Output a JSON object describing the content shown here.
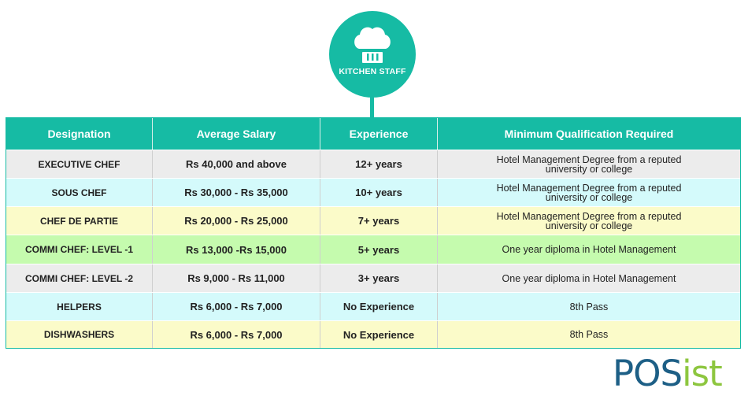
{
  "badge": {
    "icon": "chef-hat-icon",
    "label": "KITCHEN STAFF"
  },
  "table": {
    "columns": [
      "Designation",
      "Average Salary",
      "Experience",
      "Minimum Qualification Required"
    ],
    "rows": [
      {
        "designation": "EXECUTIVE CHEF",
        "salary": "Rs 40,000 and above",
        "experience": "12+ years",
        "qualification": "Hotel Management Degree from a reputed university or college"
      },
      {
        "designation": "SOUS CHEF",
        "salary": "Rs 30,000 - Rs 35,000",
        "experience": "10+ years",
        "qualification": "Hotel Management Degree from a reputed university or college"
      },
      {
        "designation": "CHEF DE PARTIE",
        "salary": "Rs 20,000 - Rs 25,000",
        "experience": "7+ years",
        "qualification": "Hotel Management Degree from a reputed university or college"
      },
      {
        "designation": "COMMI CHEF: LEVEL -1",
        "salary": "Rs 13,000 -Rs 15,000",
        "experience": "5+ years",
        "qualification": "One year diploma in Hotel Management"
      },
      {
        "designation": "COMMI CHEF: LEVEL -2",
        "salary": "Rs 9,000 - Rs 11,000",
        "experience": "3+ years",
        "qualification": "One year diploma in Hotel Management"
      },
      {
        "designation": "HELPERS",
        "salary": "Rs 6,000 - Rs 7,000",
        "experience": "No Experience",
        "qualification": "8th Pass"
      },
      {
        "designation": "DISHWASHERS",
        "salary": "Rs 6,000 - Rs 7,000",
        "experience": "No Experience",
        "qualification": "8th Pass"
      }
    ]
  },
  "logo": {
    "part1": "POS",
    "part2": "ist"
  },
  "colors": {
    "accent": "#16bba4",
    "row_gray": "#ececec",
    "row_cyan": "#d4fafb",
    "row_yellow": "#fbfbc9",
    "row_green": "#c5fbae",
    "logo_blue": "#1d5f86",
    "logo_green": "#8dc63f"
  }
}
